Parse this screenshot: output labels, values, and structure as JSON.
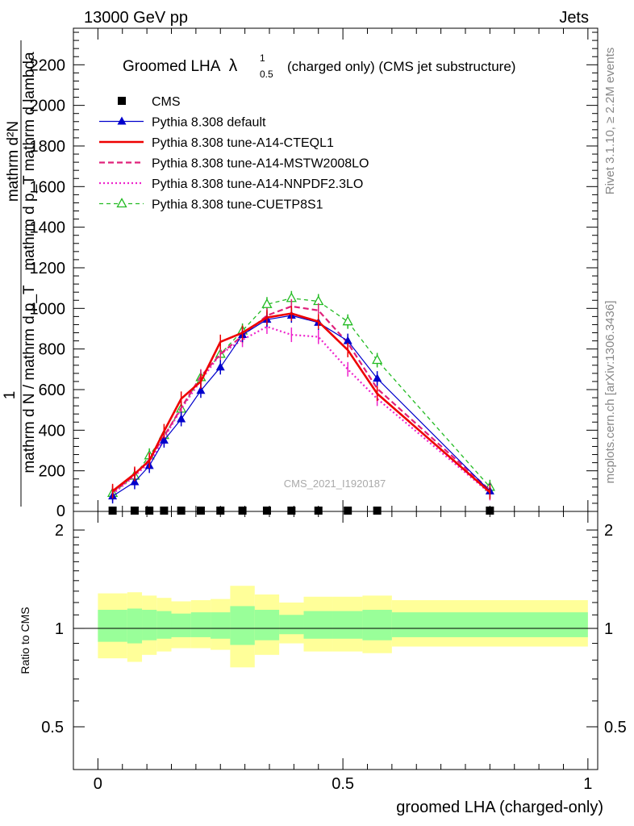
{
  "header": {
    "left": "13000 GeV pp",
    "right": "Jets"
  },
  "side_labels": {
    "rivet": "Rivet 3.1.10, ≥ 2.2M events",
    "mcplots": "mcplots.cern.ch [arXiv:1306.3436]"
  },
  "watermark": "CMS_2021_I1920187",
  "chart_data": [
    {
      "type": "line",
      "title": "Groomed LHA",
      "title_symbol": "λ",
      "title_superscript": "1",
      "title_subscript": "0.5",
      "subtitle": "(charged only) (CMS jet substructure)",
      "ylabel_numerator": "mathrm d²N",
      "ylabel_numerator_overlay": "mathrm d p_T mathrm d lambda",
      "ylabel_one": "1",
      "ylabel_denominator": "mathrm d N / mathrm d p_T",
      "xlim": [
        -0.05,
        1.02
      ],
      "ylim": [
        0,
        2380
      ],
      "yticks": [
        200,
        400,
        600,
        800,
        1000,
        1200,
        1400,
        1600,
        1800,
        2000,
        2200
      ],
      "ytick_labels": [
        "200",
        "400",
        "600",
        "800",
        "1000",
        "1200",
        "1400",
        "1600",
        "1800",
        "2000",
        "2200"
      ],
      "ytick_zero_label": "0",
      "legend_position": "top-left",
      "x": [
        0.03,
        0.075,
        0.105,
        0.135,
        0.17,
        0.21,
        0.25,
        0.295,
        0.345,
        0.395,
        0.45,
        0.51,
        0.57,
        0.8
      ],
      "series": [
        {
          "name": "CMS",
          "color": "#000000",
          "style": "square",
          "values": [
            0,
            0,
            0,
            0,
            0,
            0,
            0,
            0,
            0,
            0,
            0,
            0,
            0,
            0
          ]
        },
        {
          "name": "Pythia 8.308 default",
          "color": "#0000cc",
          "style": "solid-filled-triangle",
          "values": [
            75,
            145,
            225,
            350,
            455,
            595,
            710,
            870,
            945,
            965,
            930,
            840,
            655,
            100
          ]
        },
        {
          "name": "Pythia 8.308 tune-A14-CTEQL1",
          "color": "#ee0000",
          "style": "solid-thick",
          "values": [
            100,
            185,
            250,
            395,
            555,
            640,
            835,
            880,
            955,
            975,
            935,
            795,
            580,
            95
          ]
        },
        {
          "name": "Pythia 8.308 tune-A14-MSTW2008LO",
          "color": "#e0207a",
          "style": "dashed",
          "values": [
            95,
            180,
            255,
            370,
            510,
            665,
            775,
            865,
            965,
            1010,
            990,
            830,
            605,
            105
          ]
        },
        {
          "name": "Pythia 8.308 tune-A14-NNPDF2.3LO",
          "color": "#ee22cc",
          "style": "dotted",
          "values": [
            85,
            175,
            240,
            360,
            505,
            645,
            775,
            845,
            910,
            870,
            860,
            700,
            555,
            90
          ]
        },
        {
          "name": "Pythia 8.308 tune-CUETP8S1",
          "color": "#22bb22",
          "style": "dashed-open-triangle",
          "values": [
            90,
            175,
            275,
            375,
            505,
            660,
            775,
            890,
            1020,
            1050,
            1035,
            935,
            745,
            120
          ]
        }
      ]
    },
    {
      "type": "area",
      "ylabel": "Ratio to CMS",
      "xlabel": "groomed LHA (charged-only)",
      "xlim": [
        -0.05,
        1.02
      ],
      "ylim": [
        0.37,
        2.28
      ],
      "xticks": [
        0,
        0.5,
        1
      ],
      "xtick_labels": [
        "0",
        "0.5",
        "1"
      ],
      "yticks": [
        0.5,
        1,
        2
      ],
      "ytick_labels": [
        "0.5",
        "1",
        "2"
      ],
      "reference": 1,
      "bin_edges": [
        0,
        0.06,
        0.09,
        0.12,
        0.15,
        0.19,
        0.23,
        0.27,
        0.32,
        0.37,
        0.42,
        0.48,
        0.54,
        0.6,
        1.0
      ],
      "bands": [
        {
          "name": "total-uncertainty",
          "color": "#ffff99",
          "low": [
            0.81,
            0.79,
            0.83,
            0.85,
            0.87,
            0.87,
            0.86,
            0.76,
            0.83,
            0.9,
            0.85,
            0.85,
            0.84,
            0.88
          ],
          "high": [
            1.28,
            1.29,
            1.26,
            1.24,
            1.21,
            1.22,
            1.23,
            1.35,
            1.27,
            1.2,
            1.25,
            1.25,
            1.26,
            1.22
          ]
        },
        {
          "name": "stat-uncertainty",
          "color": "#99ff99",
          "low": [
            0.91,
            0.9,
            0.92,
            0.93,
            0.94,
            0.94,
            0.93,
            0.89,
            0.92,
            0.96,
            0.93,
            0.93,
            0.92,
            0.94
          ],
          "high": [
            1.14,
            1.15,
            1.14,
            1.13,
            1.11,
            1.12,
            1.12,
            1.17,
            1.14,
            1.1,
            1.13,
            1.13,
            1.14,
            1.12
          ]
        }
      ]
    }
  ]
}
